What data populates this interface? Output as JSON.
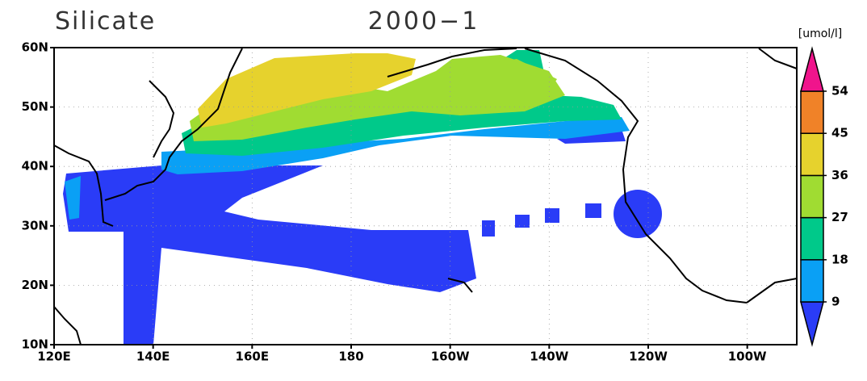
{
  "map": {
    "title": "Silicate",
    "subtitle": "2000−1",
    "unit": "[umol/l]",
    "xlim": [
      120,
      270
    ],
    "ylim": [
      10,
      60
    ],
    "lon_ticks": [
      {
        "value": 120,
        "label": "120E"
      },
      {
        "value": 140,
        "label": "140E"
      },
      {
        "value": 160,
        "label": "160E"
      },
      180,
      {
        "value": 200,
        "label": "160W"
      },
      {
        "value": 220,
        "label": "140W"
      },
      {
        "value": 240,
        "label": "120W"
      },
      {
        "value": 260,
        "label": "100W"
      }
    ],
    "lat_ticks": [
      {
        "value": 10,
        "label": "10N"
      },
      {
        "value": 20,
        "label": "20N"
      },
      {
        "value": 30,
        "label": "30N"
      },
      {
        "value": 40,
        "label": "40N"
      },
      {
        "value": 50,
        "label": "50N"
      },
      {
        "value": 60,
        "label": "60N"
      }
    ],
    "grid": true,
    "colorbar": {
      "levels": [
        9,
        18,
        27,
        36,
        45,
        54
      ],
      "colors": [
        "#2a3cf7",
        "#0aa0f5",
        "#00c98a",
        "#a0dc32",
        "#e6d22d",
        "#f08228",
        "#f0148c"
      ]
    }
  }
}
